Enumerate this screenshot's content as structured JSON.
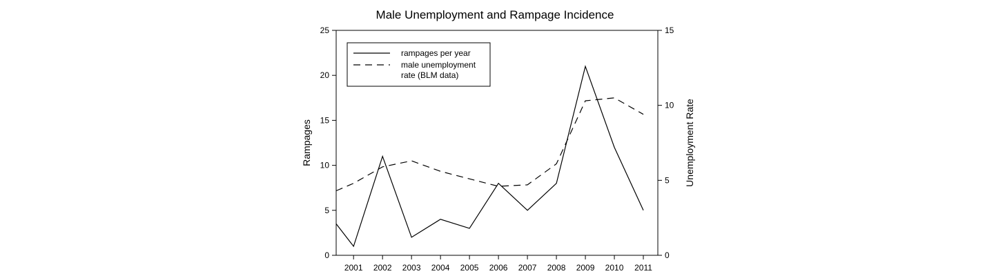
{
  "chart_data": {
    "type": "line",
    "title": "Male Unemployment and Rampage Incidence",
    "x": [
      2000.4,
      2001,
      2002,
      2003,
      2004,
      2005,
      2006,
      2007,
      2008,
      2009,
      2010,
      2011
    ],
    "xlim": [
      2000.4,
      2011.5
    ],
    "xticks": [
      "2001",
      "2002",
      "2003",
      "2004",
      "2005",
      "2006",
      "2007",
      "2008",
      "2009",
      "2010",
      "2011"
    ],
    "ylabel": "Rampages",
    "ylim": [
      0,
      25
    ],
    "yticks": [
      "0",
      "5",
      "10",
      "15",
      "20",
      "25"
    ],
    "y2label": "Unemployment Rate",
    "y2lim": [
      0,
      15
    ],
    "y2ticks": [
      "0",
      "5",
      "10",
      "15"
    ],
    "legend_position": "top-left",
    "series": [
      {
        "name": "rampages per year",
        "axis": "left",
        "style": "solid",
        "x": [
          2000.4,
          2001,
          2002,
          2003,
          2004,
          2005,
          2006,
          2007,
          2008,
          2009,
          2010,
          2011
        ],
        "values": [
          3.5,
          1,
          11,
          2,
          4,
          3,
          8,
          5,
          8,
          21,
          12,
          5
        ]
      },
      {
        "name": "male unemployment rate (BLM data)",
        "legend_lines": [
          "male unemployment",
          "rate (BLM data)"
        ],
        "axis": "right",
        "style": "dashed",
        "x": [
          2000.4,
          2001,
          2002,
          2003,
          2004,
          2005,
          2006,
          2007,
          2008,
          2009,
          2010,
          2011
        ],
        "values": [
          4.3,
          4.8,
          5.9,
          6.3,
          5.6,
          5.1,
          4.6,
          4.7,
          6.1,
          10.3,
          10.5,
          9.4
        ]
      }
    ]
  }
}
